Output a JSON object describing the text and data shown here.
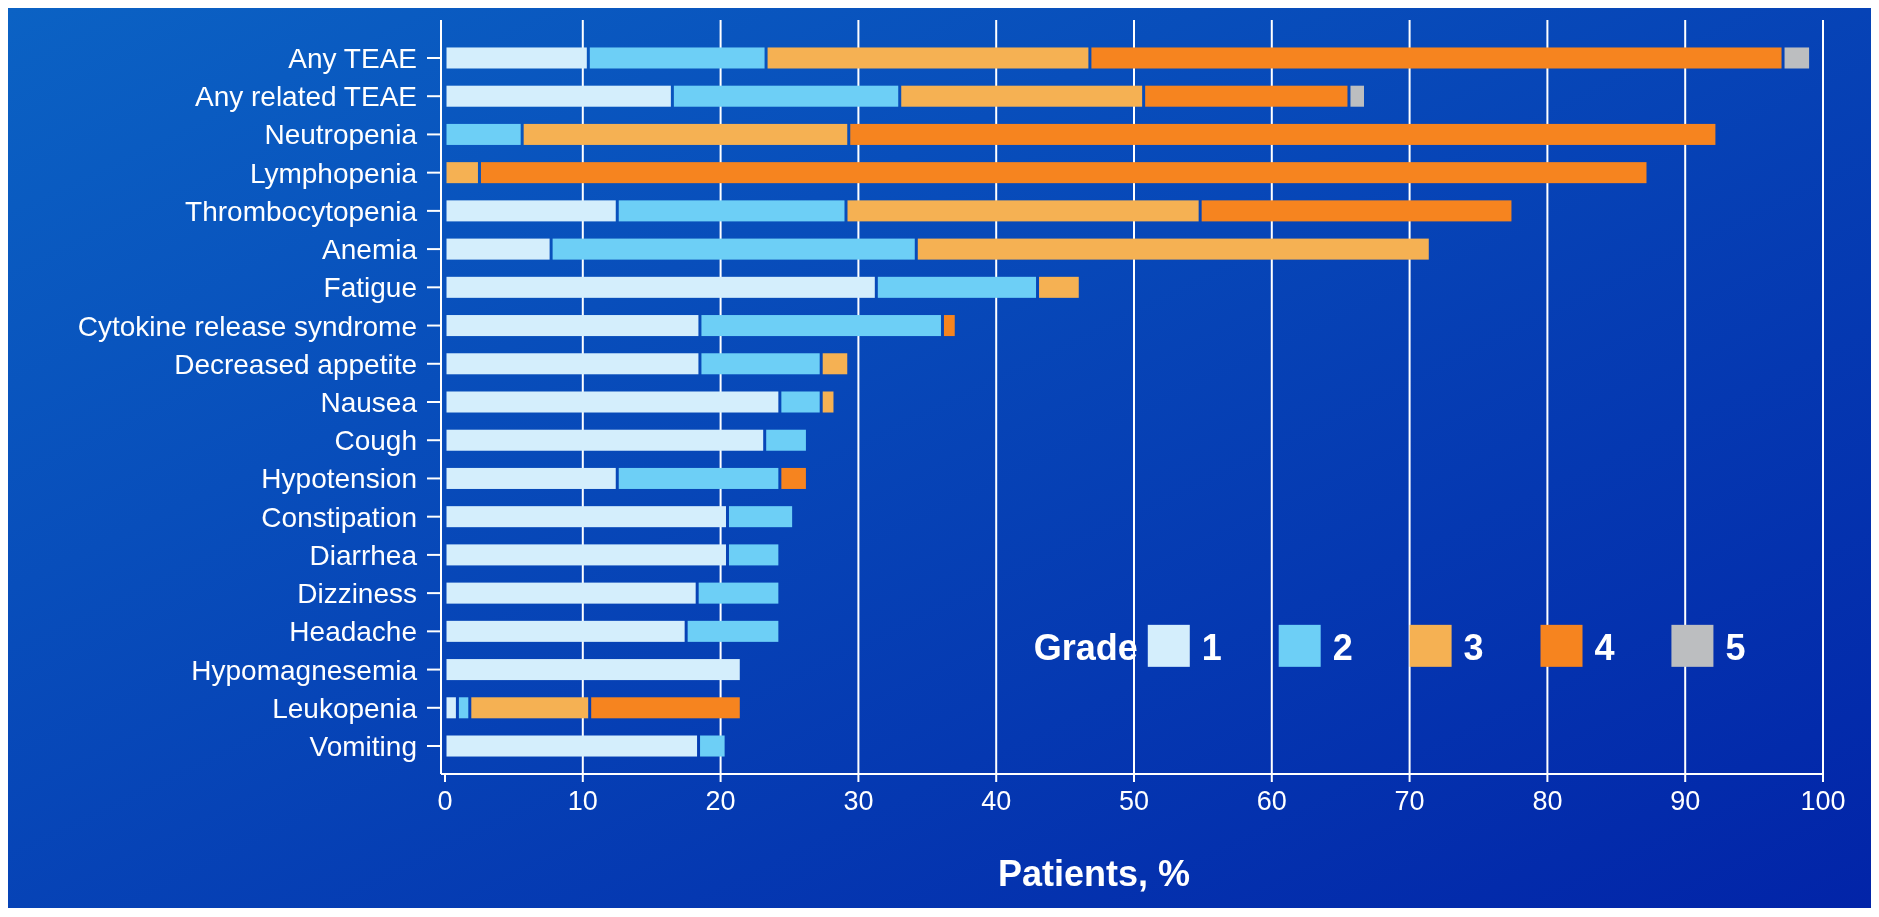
{
  "chart_data": {
    "type": "bar",
    "orientation": "horizontal",
    "stacked": true,
    "categories": [
      "Any TEAE",
      "Any related TEAE",
      "Neutropenia",
      "Lymphopenia",
      "Thrombocytopenia",
      "Anemia",
      "Fatigue",
      "Cytokine release syndrome",
      "Decreased appetite",
      "Nausea",
      "Cough",
      "Hypotension",
      "Constipation",
      "Diarrhea",
      "Dizziness",
      "Headache",
      "Hypomagnesemia",
      "Leukopenia",
      "Vomiting"
    ],
    "series": [
      {
        "name": "1",
        "color": "#d4eefc",
        "values": [
          10.4,
          16.5,
          null,
          null,
          12.5,
          7.7,
          31.3,
          18.5,
          18.5,
          24.3,
          23.2,
          12.5,
          20.5,
          20.5,
          18.3,
          17.5,
          21.5,
          0.9,
          18.4
        ]
      },
      {
        "name": "2",
        "color": "#6dcff6",
        "values": [
          12.9,
          16.5,
          5.6,
          null,
          16.6,
          26.5,
          11.7,
          17.6,
          8.8,
          3.0,
          3.1,
          11.8,
          4.8,
          3.8,
          6.0,
          6.8,
          null,
          0.9,
          2.0
        ]
      },
      {
        "name": "3",
        "color": "#f5b153",
        "values": [
          23.5,
          17.7,
          23.7,
          2.5,
          25.7,
          37.3,
          3.1,
          null,
          2.0,
          1.0,
          null,
          null,
          null,
          null,
          null,
          null,
          null,
          8.7,
          null
        ]
      },
      {
        "name": "4",
        "color": "#f6841f",
        "values": [
          50.3,
          14.9,
          63.0,
          84.8,
          22.7,
          null,
          null,
          1.0,
          null,
          null,
          null,
          2.0,
          null,
          null,
          null,
          null,
          null,
          11.0,
          null
        ]
      },
      {
        "name": "5",
        "color": "#bcbec0",
        "values": [
          2.0,
          1.2,
          null,
          null,
          null,
          null,
          null,
          null,
          null,
          null,
          null,
          null,
          null,
          null,
          null,
          null,
          null,
          null,
          null
        ]
      }
    ],
    "xlim": [
      0,
      100
    ],
    "xticks": [
      0,
      10,
      20,
      30,
      40,
      50,
      60,
      70,
      80,
      90,
      100
    ],
    "xlabel": "Patients, %",
    "legend_title": "Grade",
    "legend": "bottom right",
    "grid": "x"
  }
}
